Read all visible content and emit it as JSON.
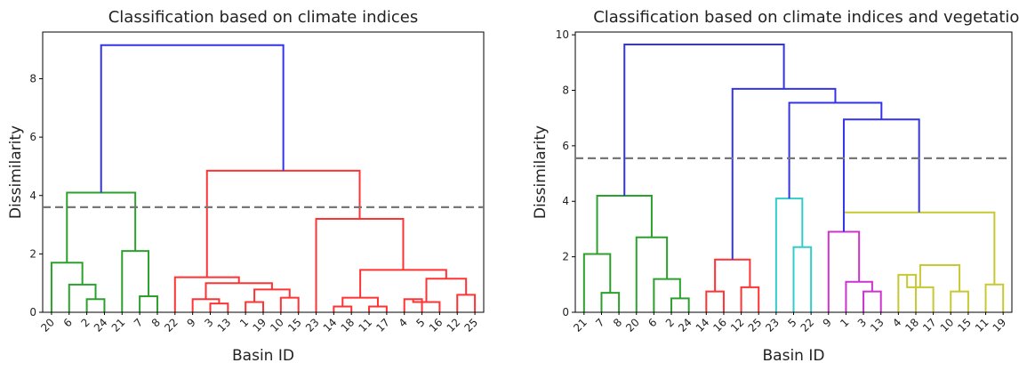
{
  "chart_data": [
    {
      "type": "dendrogram",
      "title": "Classification based on climate indices",
      "xlabel": "Basin ID",
      "ylabel": "Dissimilarity",
      "ylim": [
        0,
        9.6
      ],
      "yticks": [
        0,
        2,
        4,
        6,
        8
      ],
      "leaf_order": [
        "20",
        "6",
        "2",
        "24",
        "21",
        "7",
        "8",
        "22",
        "9",
        "3",
        "13",
        "1",
        "19",
        "10",
        "15",
        "23",
        "14",
        "18",
        "11",
        "17",
        "4",
        "5",
        "16",
        "12",
        "25"
      ],
      "cut_height": 3.6,
      "colors": {
        "green": "#2ca02c",
        "red": "#ff3333",
        "blue": "#3333ee",
        "cut": "#777777"
      },
      "merges": [
        {
          "l": 2,
          "r": 3,
          "h": 0.45,
          "c": "green"
        },
        {
          "l": 1,
          "r": 25,
          "h": 0.95,
          "c": "green"
        },
        {
          "l": 0,
          "r": 26,
          "h": 1.7,
          "c": "green"
        },
        {
          "l": 5,
          "r": 6,
          "h": 0.55,
          "c": "green"
        },
        {
          "l": 4,
          "r": 28,
          "h": 2.1,
          "c": "green"
        },
        {
          "l": 27,
          "r": 29,
          "h": 4.1,
          "c": "green"
        },
        {
          "l": 9,
          "r": 10,
          "h": 0.3,
          "c": "red"
        },
        {
          "l": 8,
          "r": 31,
          "h": 0.45,
          "c": "red"
        },
        {
          "l": 11,
          "r": 12,
          "h": 0.35,
          "c": "red"
        },
        {
          "l": 13,
          "r": 14,
          "h": 0.5,
          "c": "red"
        },
        {
          "l": 33,
          "r": 34,
          "h": 0.78,
          "c": "red"
        },
        {
          "l": 32,
          "r": 35,
          "h": 1.0,
          "c": "red"
        },
        {
          "l": 7,
          "r": 36,
          "h": 1.2,
          "c": "red"
        },
        {
          "l": 16,
          "r": 17,
          "h": 0.2,
          "c": "red"
        },
        {
          "l": 18,
          "r": 19,
          "h": 0.2,
          "c": "red"
        },
        {
          "l": 38,
          "r": 39,
          "h": 0.5,
          "c": "red"
        },
        {
          "l": 20,
          "r": 21,
          "h": 0.45,
          "c": "red"
        },
        {
          "l": 41,
          "r": 22,
          "h": 0.35,
          "c": "red"
        },
        {
          "l": 23,
          "r": 24,
          "h": 0.6,
          "c": "red"
        },
        {
          "l": 42,
          "r": 43,
          "h": 1.15,
          "c": "red"
        },
        {
          "l": 40,
          "r": 44,
          "h": 1.45,
          "c": "red"
        },
        {
          "l": 15,
          "r": 45,
          "h": 3.2,
          "c": "red"
        },
        {
          "l": 37,
          "r": 46,
          "h": 4.85,
          "c": "red"
        },
        {
          "l": 30,
          "r": 47,
          "h": 9.15,
          "c": "blue"
        }
      ]
    },
    {
      "type": "dendrogram",
      "title": "Classification based on climate indices and vegetation",
      "xlabel": "Basin ID",
      "ylabel": "Dissimilarity",
      "ylim": [
        0,
        10.1
      ],
      "yticks": [
        0,
        2,
        4,
        6,
        8,
        10
      ],
      "leaf_order": [
        "21",
        "7",
        "8",
        "20",
        "6",
        "2",
        "24",
        "14",
        "16",
        "12",
        "25",
        "23",
        "5",
        "22",
        "9",
        "1",
        "3",
        "13",
        "4",
        "18",
        "17",
        "10",
        "15",
        "11",
        "19"
      ],
      "cut_height": 5.55,
      "colors": {
        "green": "#2ca02c",
        "red": "#ff3333",
        "blue": "#3333ee",
        "cyan": "#33cccc",
        "magenta": "#cc33cc",
        "olive": "#c8c832",
        "cut": "#777777"
      },
      "merges": [
        {
          "l": 1,
          "r": 2,
          "h": 0.7,
          "c": "green"
        },
        {
          "l": 0,
          "r": 25,
          "h": 2.1,
          "c": "green"
        },
        {
          "l": 5,
          "r": 6,
          "h": 0.5,
          "c": "green"
        },
        {
          "l": 4,
          "r": 27,
          "h": 1.2,
          "c": "green"
        },
        {
          "l": 3,
          "r": 28,
          "h": 2.7,
          "c": "green"
        },
        {
          "l": 26,
          "r": 29,
          "h": 4.2,
          "c": "green"
        },
        {
          "l": 7,
          "r": 8,
          "h": 0.75,
          "c": "red"
        },
        {
          "l": 9,
          "r": 10,
          "h": 0.9,
          "c": "red"
        },
        {
          "l": 31,
          "r": 32,
          "h": 1.9,
          "c": "red"
        },
        {
          "l": 12,
          "r": 13,
          "h": 2.35,
          "c": "cyan"
        },
        {
          "l": 11,
          "r": 34,
          "h": 4.1,
          "c": "cyan"
        },
        {
          "l": 16,
          "r": 17,
          "h": 0.75,
          "c": "magenta"
        },
        {
          "l": 15,
          "r": 36,
          "h": 1.1,
          "c": "magenta"
        },
        {
          "l": 14,
          "r": 37,
          "h": 2.9,
          "c": "magenta"
        },
        {
          "l": 18,
          "r": 19,
          "h": 1.35,
          "c": "olive"
        },
        {
          "l": 21,
          "r": 22,
          "h": 0.75,
          "c": "olive"
        },
        {
          "l": 20,
          "r": 39,
          "h": 0.9,
          "c": "olive"
        },
        {
          "l": 23,
          "r": 24,
          "h": 1.0,
          "c": "olive"
        },
        {
          "l": 40,
          "r": 41,
          "h": 1.7,
          "c": "olive"
        },
        {
          "l": 38,
          "r": 42,
          "h": 3.6,
          "c": "olive"
        },
        {
          "l": 43,
          "r": 38,
          "h": 0,
          "c": "skip"
        }
      ]
    }
  ]
}
